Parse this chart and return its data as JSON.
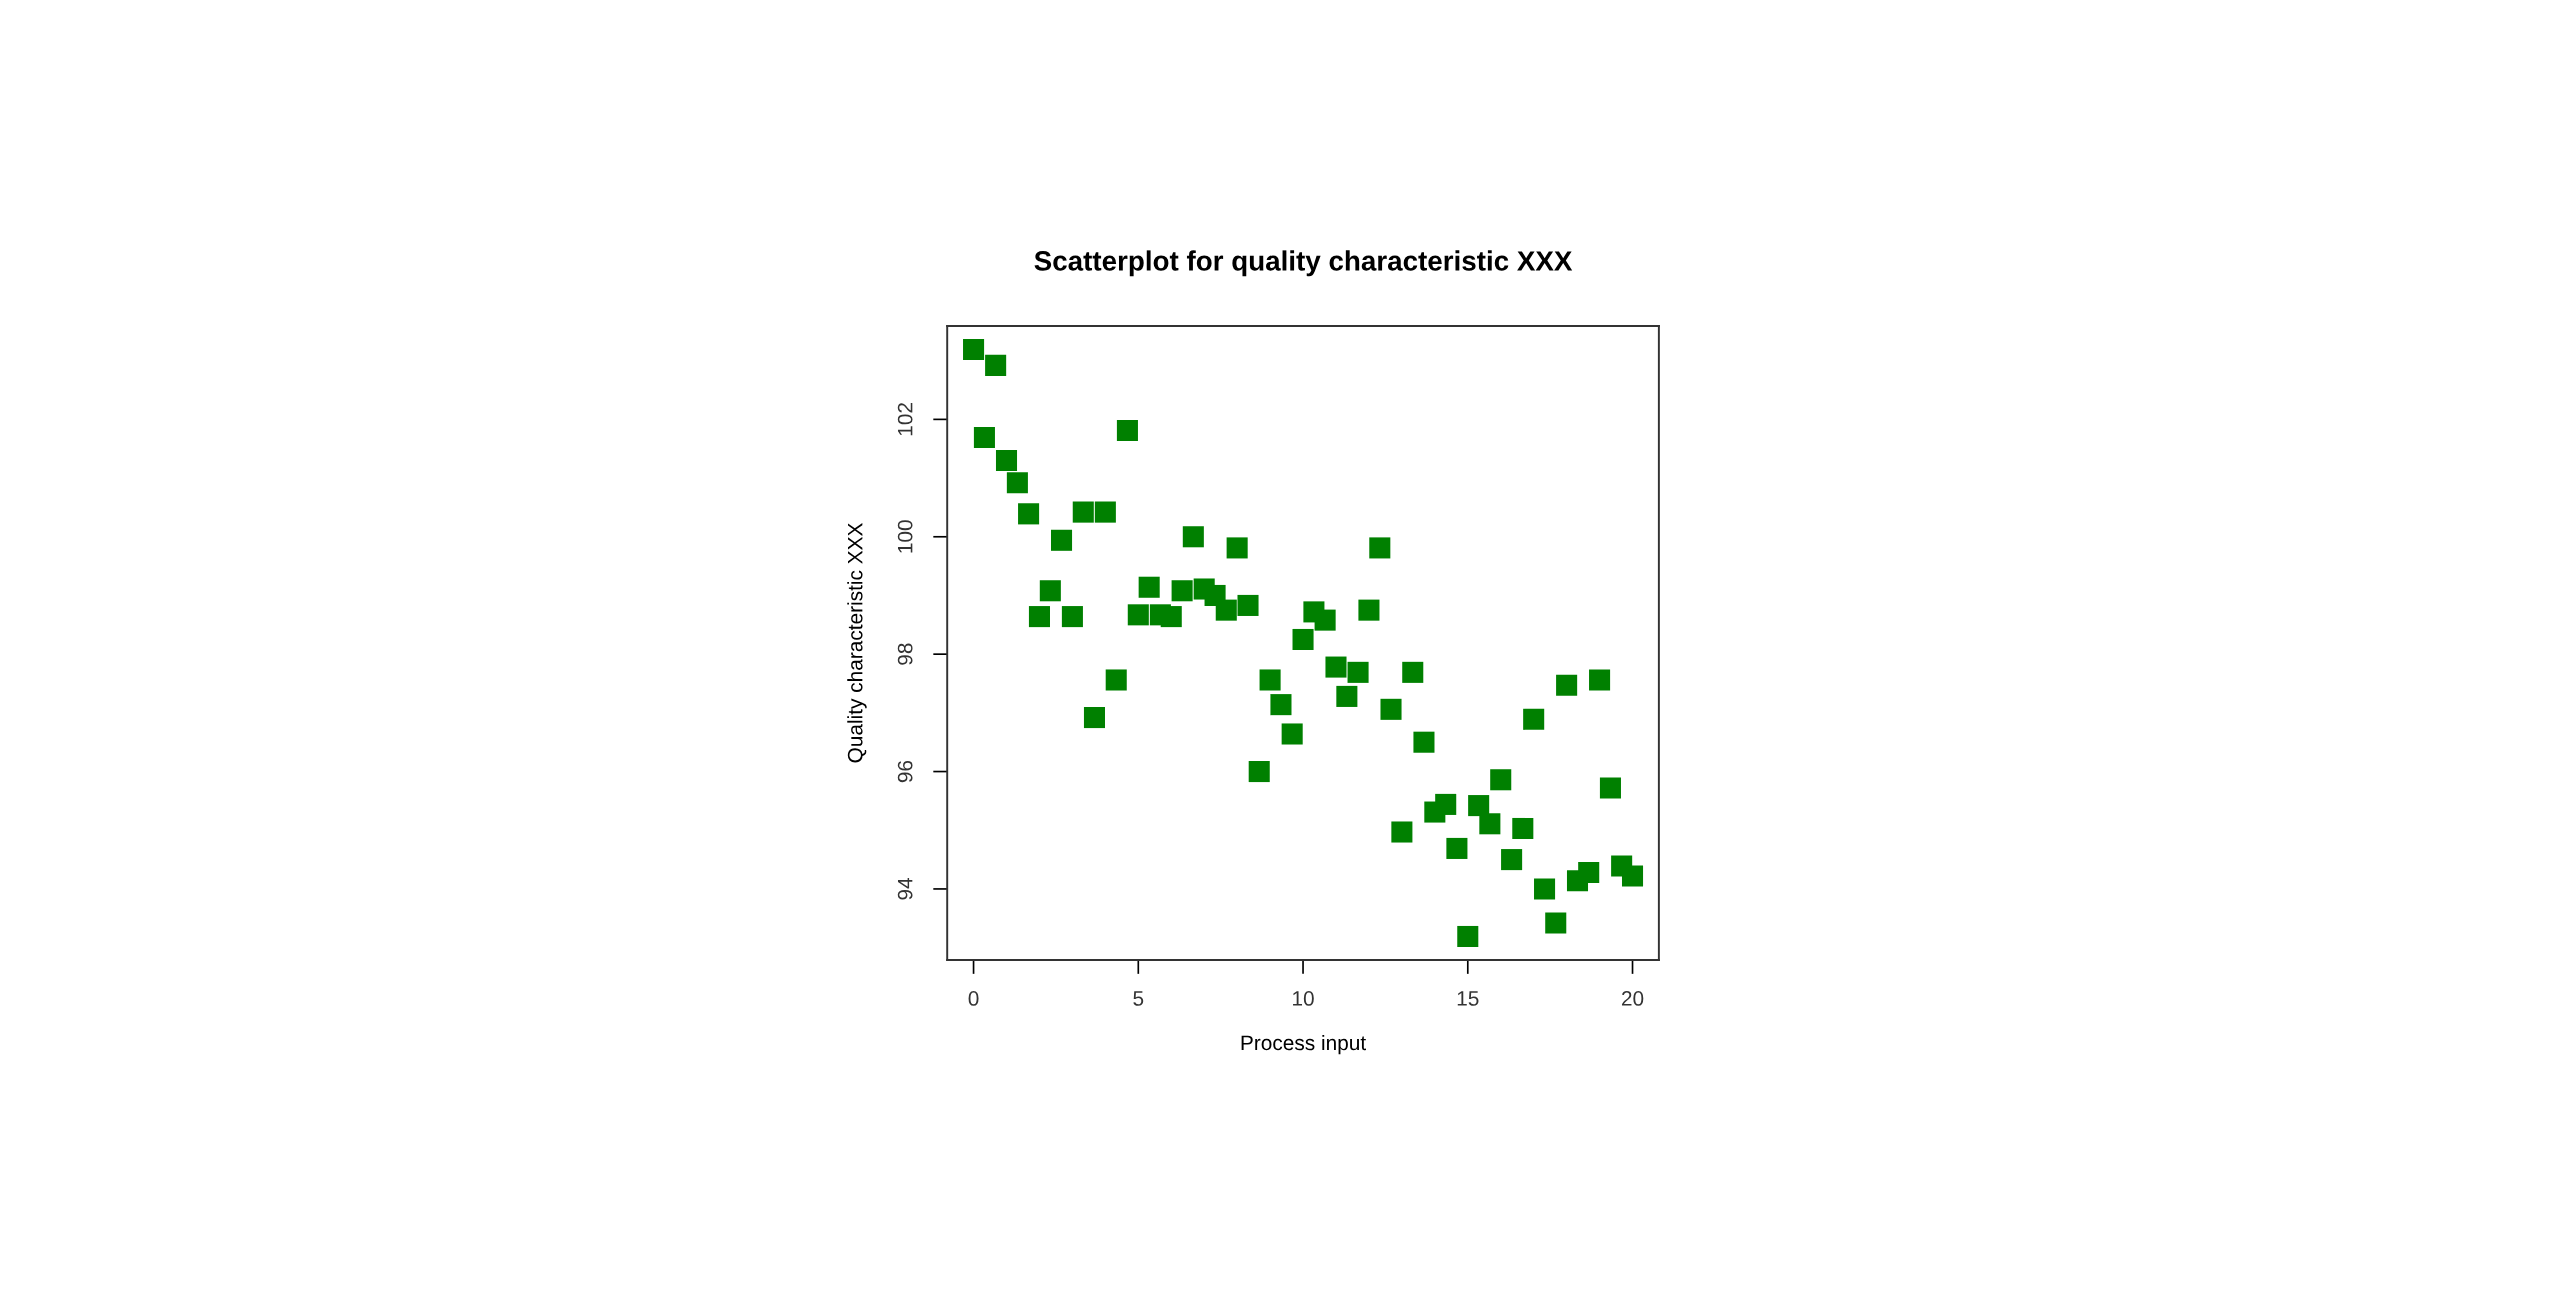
{
  "chart_data": {
    "type": "scatter",
    "title": "Scatterplot for quality characteristic XXX",
    "xlabel": "Process input",
    "ylabel": "Quality characteristic XXX",
    "x": [
      0,
      0.33,
      0.67,
      1.0,
      1.33,
      1.67,
      2.0,
      2.33,
      2.67,
      3.0,
      3.33,
      3.67,
      4.0,
      4.33,
      4.67,
      5.0,
      5.33,
      5.67,
      6.0,
      6.33,
      6.67,
      7.0,
      7.33,
      7.67,
      8.0,
      8.33,
      8.67,
      9.0,
      9.33,
      9.67,
      10.0,
      10.33,
      10.67,
      11.0,
      11.33,
      11.67,
      12.0,
      12.33,
      12.67,
      13.0,
      13.33,
      13.67,
      14.0,
      14.33,
      14.67,
      15.0,
      15.33,
      15.67,
      16.0,
      16.33,
      16.67,
      17.0,
      17.33,
      17.67,
      18.0,
      18.33,
      18.67,
      19.0,
      19.33,
      19.67,
      20.0
    ],
    "series": [
      {
        "color": "#008000",
        "values": [
          103.19,
          101.69,
          102.92,
          101.3,
          100.92,
          100.39,
          98.64,
          99.08,
          99.94,
          98.64,
          100.42,
          96.92,
          100.42,
          97.56,
          101.81,
          98.67,
          99.14,
          98.67,
          98.64,
          99.08,
          100.0,
          99.11,
          99.0,
          98.75,
          99.81,
          98.83,
          96.0,
          97.56,
          97.14,
          96.64,
          98.25,
          98.72,
          98.58,
          97.78,
          97.28,
          97.69,
          98.75,
          99.81,
          97.06,
          94.97,
          97.69,
          96.5,
          95.31,
          95.44,
          94.69,
          93.19,
          95.42,
          95.11,
          95.86,
          94.5,
          95.03,
          96.89,
          94.0,
          93.42,
          97.47,
          94.14,
          94.28,
          97.56,
          95.72,
          94.39,
          94.22
        ]
      }
    ],
    "xlim": [
      -0.8,
      20.8
    ],
    "ylim": [
      92.79,
      103.59
    ],
    "xticks": [
      0,
      5,
      10,
      15,
      20
    ],
    "yticks": [
      94,
      96,
      98,
      100,
      102
    ],
    "marker": "square",
    "grid": false,
    "legend": false
  }
}
